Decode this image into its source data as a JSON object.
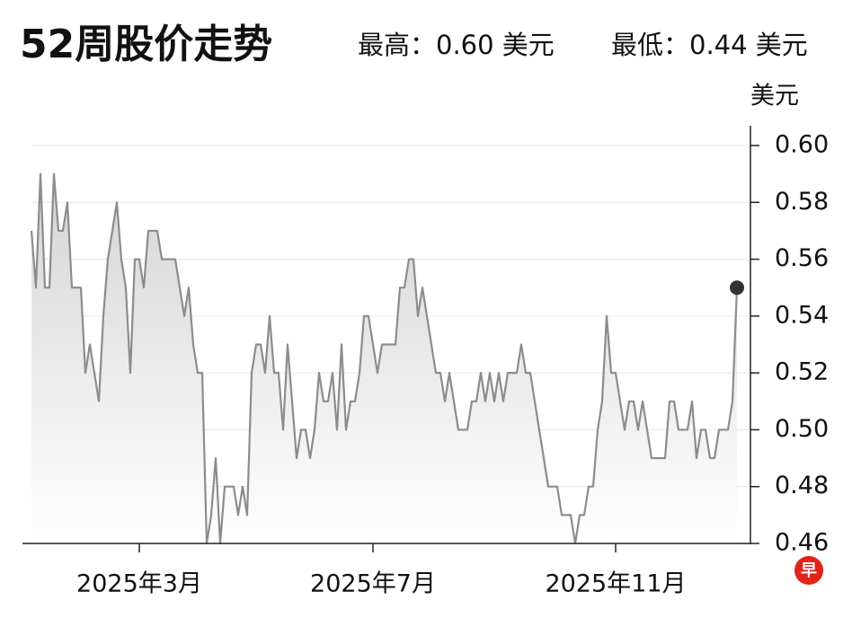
{
  "chart_data": {
    "type": "line",
    "title": "52周股价走势",
    "high_label": "最高：0.60 美元",
    "low_label": "最低：0.44 美元",
    "y_unit": "美元",
    "logo": "早",
    "color": "#8c8c8c",
    "grid": true,
    "categories": [
      null,
      null,
      null,
      null,
      null,
      null,
      null,
      null,
      null,
      null,
      null,
      null,
      null,
      null,
      null,
      null,
      null,
      null,
      null,
      null,
      null,
      null,
      null,
      null,
      "2025年3月",
      null,
      null,
      null,
      null,
      null,
      null,
      null,
      null,
      null,
      null,
      null,
      null,
      null,
      null,
      null,
      null,
      null,
      null,
      null,
      null,
      null,
      null,
      null,
      null,
      null,
      null,
      null,
      null,
      null,
      null,
      null,
      null,
      null,
      null,
      null,
      null,
      null,
      null,
      null,
      null,
      null,
      null,
      null,
      null,
      null,
      null,
      null,
      null,
      null,
      null,
      null,
      "2025年7月",
      null,
      null,
      null,
      null,
      null,
      null,
      null,
      null,
      null,
      null,
      null,
      null,
      null,
      null,
      null,
      null,
      null,
      null,
      null,
      null,
      null,
      null,
      null,
      null,
      null,
      null,
      null,
      null,
      null,
      null,
      null,
      null,
      null,
      null,
      null,
      null,
      null,
      null,
      null,
      null,
      null,
      null,
      null,
      null,
      null,
      null,
      null,
      null,
      null,
      null,
      null,
      null,
      null,
      "2025年11月",
      null,
      null,
      null,
      null,
      null,
      null,
      null,
      null,
      null,
      null,
      null,
      null,
      null,
      null,
      null,
      null,
      null,
      null,
      null,
      null,
      null,
      null,
      null,
      null,
      null,
      null,
      null
    ],
    "values": [
      0.57,
      0.55,
      0.59,
      0.55,
      0.55,
      0.59,
      0.57,
      0.57,
      0.58,
      0.55,
      0.55,
      0.55,
      0.52,
      0.53,
      0.52,
      0.51,
      0.54,
      0.56,
      0.57,
      0.58,
      0.56,
      0.55,
      0.52,
      0.56,
      0.56,
      0.55,
      0.57,
      0.57,
      0.57,
      0.56,
      0.56,
      0.56,
      0.56,
      0.55,
      0.54,
      0.55,
      0.53,
      0.52,
      0.52,
      0.46,
      0.47,
      0.49,
      0.46,
      0.48,
      0.48,
      0.48,
      0.47,
      0.48,
      0.47,
      0.52,
      0.53,
      0.53,
      0.52,
      0.54,
      0.52,
      0.52,
      0.5,
      0.53,
      0.51,
      0.49,
      0.5,
      0.5,
      0.49,
      0.5,
      0.52,
      0.51,
      0.51,
      0.52,
      0.5,
      0.53,
      0.5,
      0.51,
      0.51,
      0.52,
      0.54,
      0.54,
      0.53,
      0.52,
      0.53,
      0.53,
      0.53,
      0.53,
      0.55,
      0.55,
      0.56,
      0.56,
      0.54,
      0.55,
      0.54,
      0.53,
      0.52,
      0.52,
      0.51,
      0.52,
      0.51,
      0.5,
      0.5,
      0.5,
      0.51,
      0.51,
      0.52,
      0.51,
      0.52,
      0.51,
      0.52,
      0.51,
      0.52,
      0.52,
      0.52,
      0.53,
      0.52,
      0.52,
      0.51,
      0.5,
      0.49,
      0.48,
      0.48,
      0.48,
      0.47,
      0.47,
      0.47,
      0.46,
      0.47,
      0.47,
      0.48,
      0.48,
      0.5,
      0.51,
      0.54,
      0.52,
      0.52,
      0.51,
      0.5,
      0.51,
      0.51,
      0.5,
      0.51,
      0.5,
      0.49,
      0.49,
      0.49,
      0.49,
      0.51,
      0.51,
      0.5,
      0.5,
      0.5,
      0.51,
      0.49,
      0.5,
      0.5,
      0.49,
      0.49,
      0.5,
      0.5,
      0.5,
      0.51,
      0.55
    ],
    "ylim": [
      0.46,
      0.6
    ],
    "yticks": [
      {
        "value": 0.46,
        "label": "0.46"
      },
      {
        "value": 0.48,
        "label": "0.48"
      },
      {
        "value": 0.5,
        "label": "0.50"
      },
      {
        "value": 0.52,
        "label": "0.52"
      },
      {
        "value": 0.54,
        "label": "0.54"
      },
      {
        "value": 0.56,
        "label": "0.56"
      },
      {
        "value": 0.58,
        "label": "0.58"
      },
      {
        "value": 0.6,
        "label": "0.60"
      }
    ]
  }
}
